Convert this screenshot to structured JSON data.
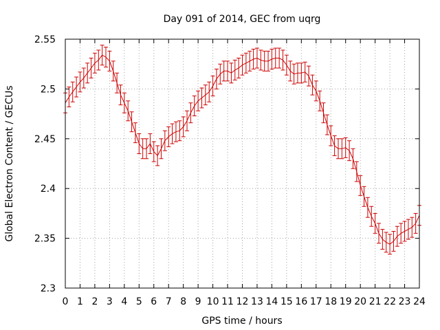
{
  "chart_data": {
    "type": "line",
    "title": "Day 091 of 2014, GEC from uqrg",
    "xlabel": "GPS time / hours",
    "ylabel": "Global Electron Content / GECUs",
    "xlim": [
      0,
      24
    ],
    "ylim": [
      2.3,
      2.55
    ],
    "x_ticks": [
      0,
      1,
      2,
      3,
      4,
      5,
      6,
      7,
      8,
      9,
      10,
      11,
      12,
      13,
      14,
      15,
      16,
      17,
      18,
      19,
      20,
      21,
      22,
      23,
      24
    ],
    "y_ticks": [
      2.3,
      2.35,
      2.4,
      2.45,
      2.5,
      2.55
    ],
    "y_tick_labels": [
      "2.3",
      "2.35",
      "2.4",
      "2.45",
      "2.5",
      "2.55"
    ],
    "grid": true,
    "error_bar": 0.01,
    "series": [
      {
        "name": "GEC",
        "color": "#cc0000",
        "x": [
          0,
          0.25,
          0.5,
          0.75,
          1,
          1.25,
          1.5,
          1.75,
          2,
          2.25,
          2.5,
          2.75,
          3,
          3.25,
          3.5,
          3.75,
          4,
          4.25,
          4.5,
          4.75,
          5,
          5.25,
          5.5,
          5.75,
          6,
          6.25,
          6.5,
          6.75,
          7,
          7.25,
          7.5,
          7.75,
          8,
          8.25,
          8.5,
          8.75,
          9,
          9.25,
          9.5,
          9.75,
          10,
          10.25,
          10.5,
          10.75,
          11,
          11.25,
          11.5,
          11.75,
          12,
          12.25,
          12.5,
          12.75,
          13,
          13.25,
          13.5,
          13.75,
          14,
          14.25,
          14.5,
          14.75,
          15,
          15.25,
          15.5,
          15.75,
          16,
          16.25,
          16.5,
          16.75,
          17,
          17.25,
          17.5,
          17.75,
          18,
          18.25,
          18.5,
          18.75,
          19,
          19.25,
          19.5,
          19.75,
          20,
          20.25,
          20.5,
          20.75,
          21,
          21.25,
          21.5,
          21.75,
          22,
          22.25,
          22.5,
          22.75,
          23,
          23.25,
          23.5,
          23.75,
          24
        ],
        "values": [
          2.486,
          2.492,
          2.497,
          2.502,
          2.507,
          2.511,
          2.516,
          2.521,
          2.526,
          2.529,
          2.534,
          2.532,
          2.528,
          2.518,
          2.506,
          2.494,
          2.486,
          2.478,
          2.467,
          2.456,
          2.445,
          2.44,
          2.44,
          2.445,
          2.437,
          2.433,
          2.44,
          2.448,
          2.452,
          2.455,
          2.457,
          2.458,
          2.462,
          2.468,
          2.476,
          2.483,
          2.488,
          2.491,
          2.494,
          2.497,
          2.503,
          2.51,
          2.515,
          2.518,
          2.518,
          2.516,
          2.519,
          2.521,
          2.524,
          2.526,
          2.528,
          2.53,
          2.531,
          2.529,
          2.528,
          2.528,
          2.53,
          2.531,
          2.531,
          2.529,
          2.524,
          2.518,
          2.515,
          2.516,
          2.516,
          2.517,
          2.513,
          2.504,
          2.498,
          2.488,
          2.476,
          2.464,
          2.453,
          2.443,
          2.44,
          2.44,
          2.441,
          2.438,
          2.43,
          2.417,
          2.403,
          2.392,
          2.381,
          2.372,
          2.365,
          2.355,
          2.349,
          2.346,
          2.344,
          2.347,
          2.352,
          2.355,
          2.357,
          2.359,
          2.361,
          2.365,
          2.373
        ]
      }
    ]
  }
}
